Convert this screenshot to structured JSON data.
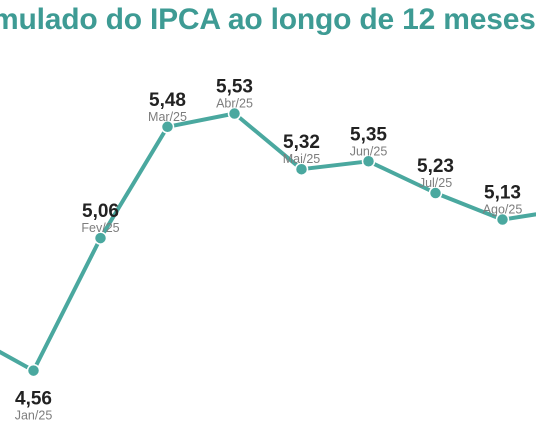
{
  "chart_data": {
    "type": "line",
    "title": "mulado do IPCA ao longo de 12 meses",
    "title_suffix": "(",
    "categories": [
      "",
      "Jan/25",
      "Fev/25",
      "Mar/25",
      "Abr/25",
      "Mai/25",
      "Jun/25",
      "Jul/25",
      "Ago/25",
      ""
    ],
    "series": [
      {
        "values": [
          null,
          4.56,
          5.06,
          5.48,
          5.53,
          5.32,
          5.35,
          5.23,
          5.13,
          null
        ],
        "value_labels": [
          "",
          "4,56",
          "5,06",
          "5,48",
          "5,53",
          "5,32",
          "5,35",
          "5,23",
          "5,13",
          ""
        ]
      }
    ],
    "partial_points": {
      "left_value": 4.7,
      "right_value": 5.17
    },
    "line_color": "#4aa89f",
    "marker_color": "#4aa89f",
    "grid": false,
    "legend": "none"
  },
  "colors": {
    "title": "#3e9b94",
    "title_suffix": "#9a9a9a",
    "value_label": "#222222",
    "category_label": "#7d7d7d"
  }
}
